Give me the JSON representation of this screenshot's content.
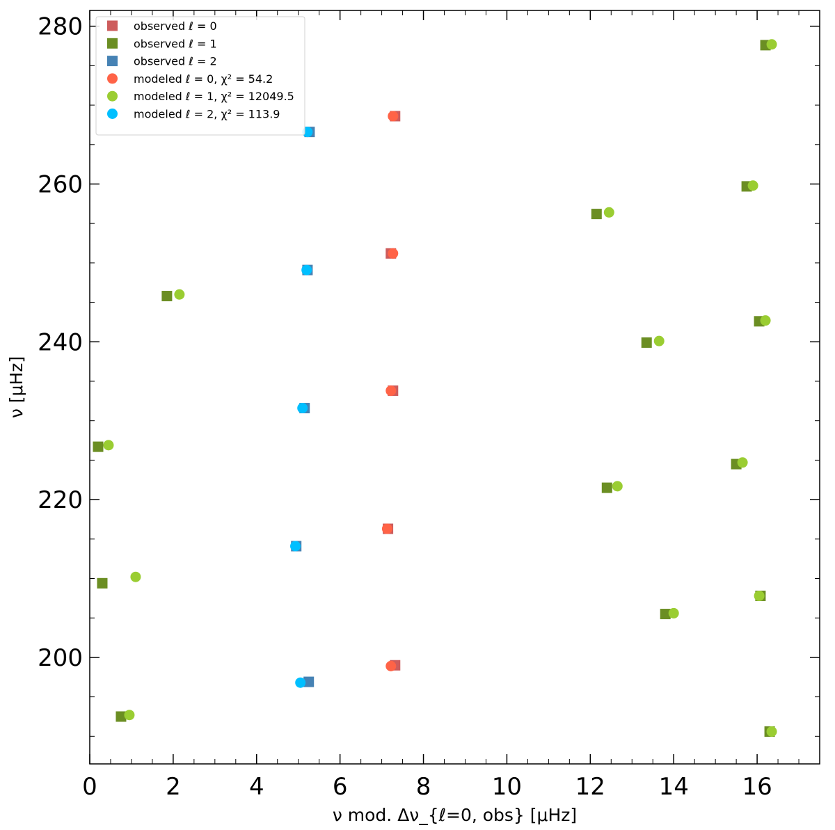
{
  "chart_data": {
    "type": "scatter",
    "title": "",
    "xlabel": "ν mod. Δν_{ℓ=0, obs} [μHz]",
    "ylabel": "ν [μHz]",
    "xlim": [
      0,
      17.5
    ],
    "ylim": [
      186.5,
      282
    ],
    "x_ticks": [
      "0",
      "2",
      "4",
      "6",
      "8",
      "10",
      "12",
      "14",
      "16"
    ],
    "y_ticks": [
      "200",
      "220",
      "240",
      "260",
      "280"
    ],
    "grid": false,
    "legend_position": "top-left",
    "series": [
      {
        "name": "observed ℓ = 0",
        "marker": "square",
        "color": "#cd5c5c",
        "points": [
          [
            7.32,
            268.6
          ],
          [
            7.22,
            251.2
          ],
          [
            7.27,
            233.8
          ],
          [
            7.15,
            216.3
          ],
          [
            7.32,
            199.0
          ]
        ]
      },
      {
        "name": "observed ℓ = 1",
        "marker": "square",
        "color": "#6b8e23",
        "points": [
          [
            16.2,
            277.6
          ],
          [
            15.75,
            259.7
          ],
          [
            12.15,
            256.2
          ],
          [
            1.85,
            245.8
          ],
          [
            16.05,
            242.6
          ],
          [
            13.35,
            239.9
          ],
          [
            0.2,
            226.7
          ],
          [
            15.5,
            224.5
          ],
          [
            12.4,
            221.5
          ],
          [
            0.3,
            209.4
          ],
          [
            16.08,
            207.8
          ],
          [
            13.8,
            205.5
          ],
          [
            0.75,
            192.5
          ],
          [
            16.3,
            190.6
          ]
        ]
      },
      {
        "name": "observed ℓ = 2",
        "marker": "square",
        "color": "#4682b4",
        "points": [
          [
            5.27,
            266.6
          ],
          [
            5.22,
            249.1
          ],
          [
            5.15,
            231.6
          ],
          [
            4.95,
            214.1
          ],
          [
            5.25,
            196.9
          ]
        ]
      },
      {
        "name": "modeled ℓ = 0, χ² = 54.2",
        "marker": "circle",
        "color": "#ff6347",
        "points": [
          [
            7.27,
            268.6
          ],
          [
            7.27,
            251.2
          ],
          [
            7.22,
            233.8
          ],
          [
            7.13,
            216.3
          ],
          [
            7.22,
            198.9
          ]
        ]
      },
      {
        "name": "modeled ℓ = 1, χ² = 12049.5",
        "marker": "circle",
        "color": "#9acd32",
        "points": [
          [
            16.35,
            277.7
          ],
          [
            15.9,
            259.8
          ],
          [
            12.45,
            256.4
          ],
          [
            2.15,
            246.0
          ],
          [
            16.2,
            242.7
          ],
          [
            13.65,
            240.1
          ],
          [
            0.45,
            226.9
          ],
          [
            15.65,
            224.7
          ],
          [
            12.65,
            221.7
          ],
          [
            1.1,
            210.2
          ],
          [
            16.05,
            207.8
          ],
          [
            14.0,
            205.6
          ],
          [
            0.95,
            192.7
          ],
          [
            16.35,
            190.6
          ]
        ]
      },
      {
        "name": "modeled ℓ = 2, χ² = 113.9",
        "marker": "circle",
        "color": "#00bfff",
        "points": [
          [
            5.22,
            266.6
          ],
          [
            5.2,
            249.1
          ],
          [
            5.1,
            231.6
          ],
          [
            4.93,
            214.1
          ],
          [
            5.05,
            196.8
          ]
        ]
      }
    ]
  }
}
